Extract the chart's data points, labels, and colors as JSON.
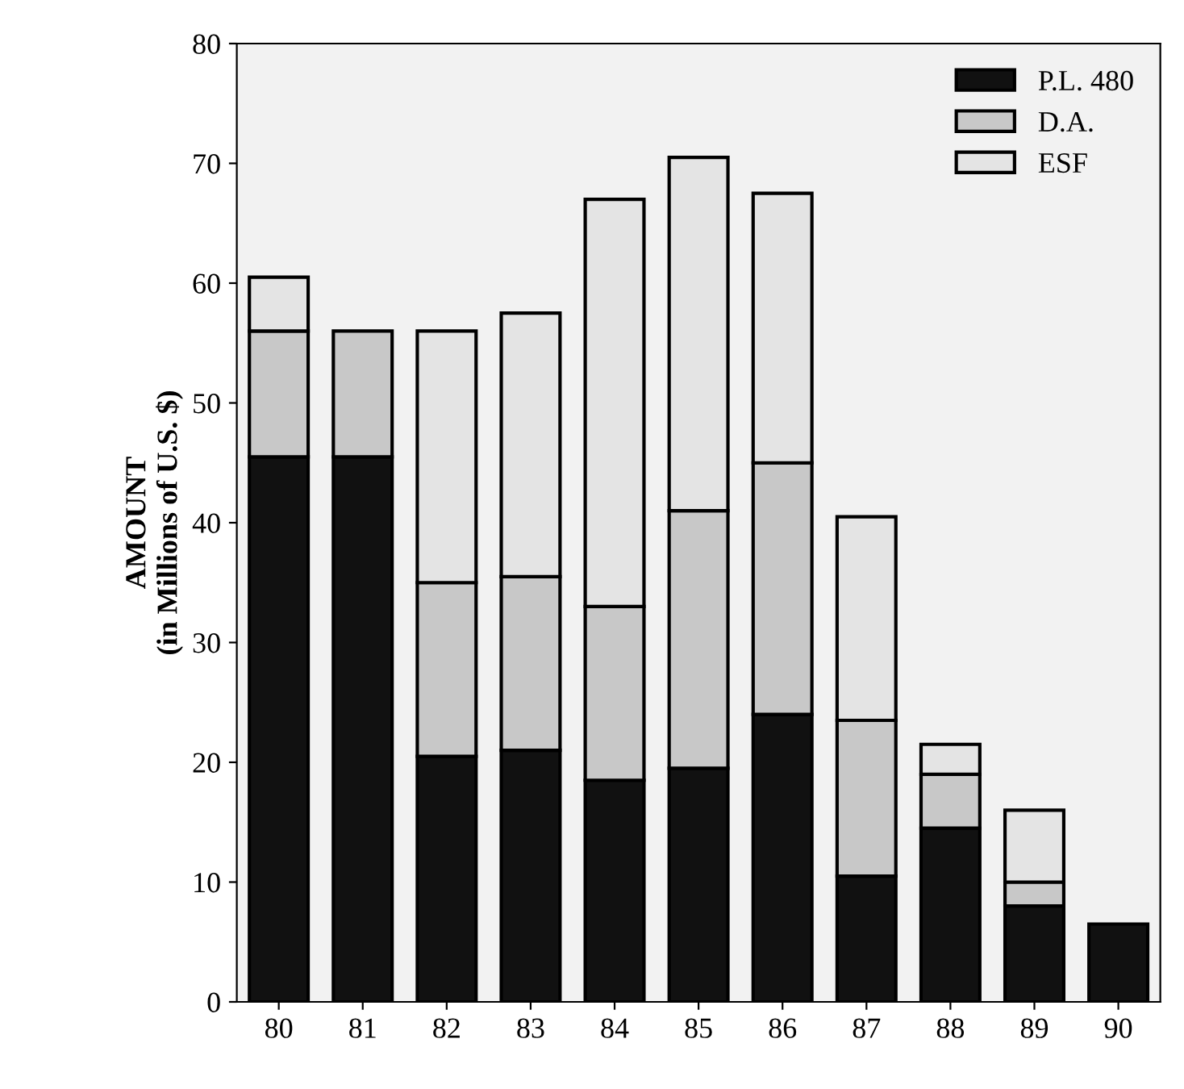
{
  "chart_data": {
    "type": "bar",
    "stacked": true,
    "ylabel": "AMOUNT\n(in Millions of U.S. $)",
    "categories": [
      "80",
      "81",
      "82",
      "83",
      "84",
      "85",
      "86",
      "87",
      "88",
      "89",
      "90"
    ],
    "series": [
      {
        "name": "P.L. 480",
        "color": "#111111",
        "values": [
          45.5,
          45.5,
          20.5,
          21,
          18.5,
          19.5,
          24,
          10.5,
          14.5,
          8,
          6.5
        ]
      },
      {
        "name": "D.A.",
        "color": "#c8c8c8",
        "values": [
          10.5,
          10.5,
          14.5,
          14.5,
          14.5,
          21.5,
          21,
          13,
          4.5,
          2,
          null
        ]
      },
      {
        "name": "ESF",
        "color": "#e4e4e4",
        "values": [
          4.5,
          null,
          21,
          22,
          34,
          29.5,
          22.5,
          17,
          2.5,
          6,
          null
        ]
      }
    ],
    "ylim": [
      0,
      80
    ],
    "yticks": [
      0,
      10,
      20,
      30,
      40,
      50,
      60,
      70,
      80
    ],
    "grid": false,
    "legend": "top right"
  }
}
